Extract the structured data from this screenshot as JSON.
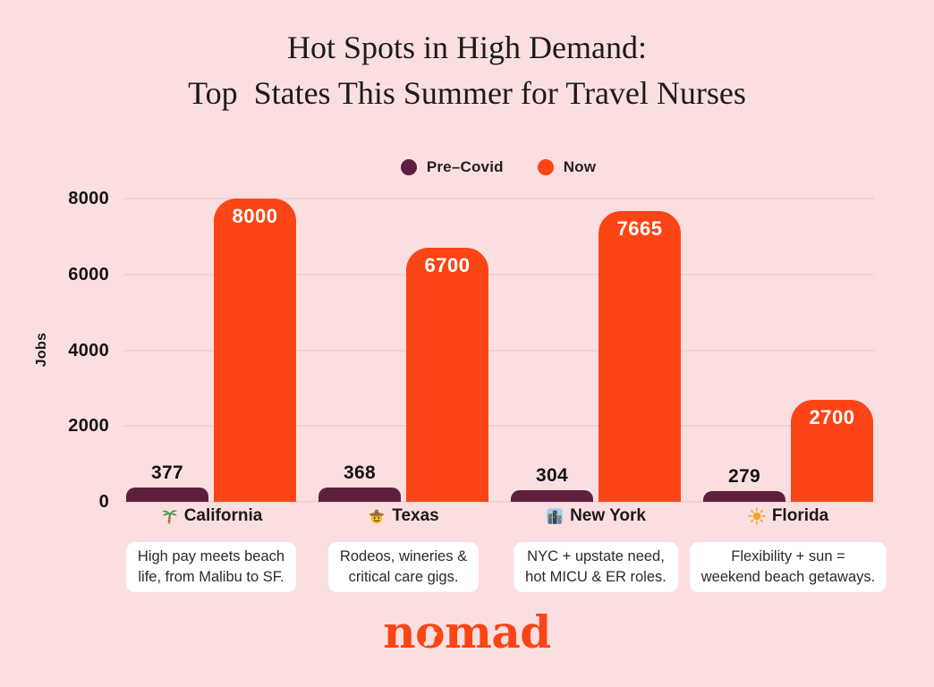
{
  "title": {
    "line1": "Hot Spots in High Demand:",
    "line2": "Top  States This Summer for Travel Nurses"
  },
  "chart_data": {
    "type": "bar",
    "title": "Hot Spots in High Demand: Top States This Summer for Travel Nurses",
    "ylabel": "Jobs",
    "xlabel": "",
    "ylim": [
      0,
      8000
    ],
    "yticks": [
      0,
      2000,
      4000,
      6000,
      8000
    ],
    "grid": true,
    "legend_position": "top",
    "categories": [
      "California",
      "Texas",
      "New York",
      "Florida"
    ],
    "category_icons": [
      "palm-tree-icon",
      "cowboy-hat-face-icon",
      "cityscape-icon",
      "sun-icon"
    ],
    "series": [
      {
        "name": "Pre–Covid",
        "color": "#5e1f3e",
        "values": [
          377,
          368,
          304,
          279
        ]
      },
      {
        "name": "Now",
        "color": "#fb4516",
        "values": [
          8000,
          6700,
          7665,
          2700
        ]
      }
    ]
  },
  "captions": [
    {
      "line1": "High pay meets beach",
      "line2": "life, from Malibu to SF."
    },
    {
      "line1": "Rodeos, wineries &",
      "line2": "critical care gigs."
    },
    {
      "line1": "NYC + upstate need,",
      "line2": "hot MICU & ER roles."
    },
    {
      "line1": "Flexibility + sun =",
      "line2": "weekend beach getaways."
    }
  ],
  "footer": {
    "logo_text": "nomad"
  },
  "colors": {
    "background": "#fbdfe0",
    "gridline": "#f0d2d4",
    "pre_covid": "#5e1f3e",
    "now": "#fb4516",
    "caption_bg": "#ffffff",
    "logo": "#fa4514"
  }
}
